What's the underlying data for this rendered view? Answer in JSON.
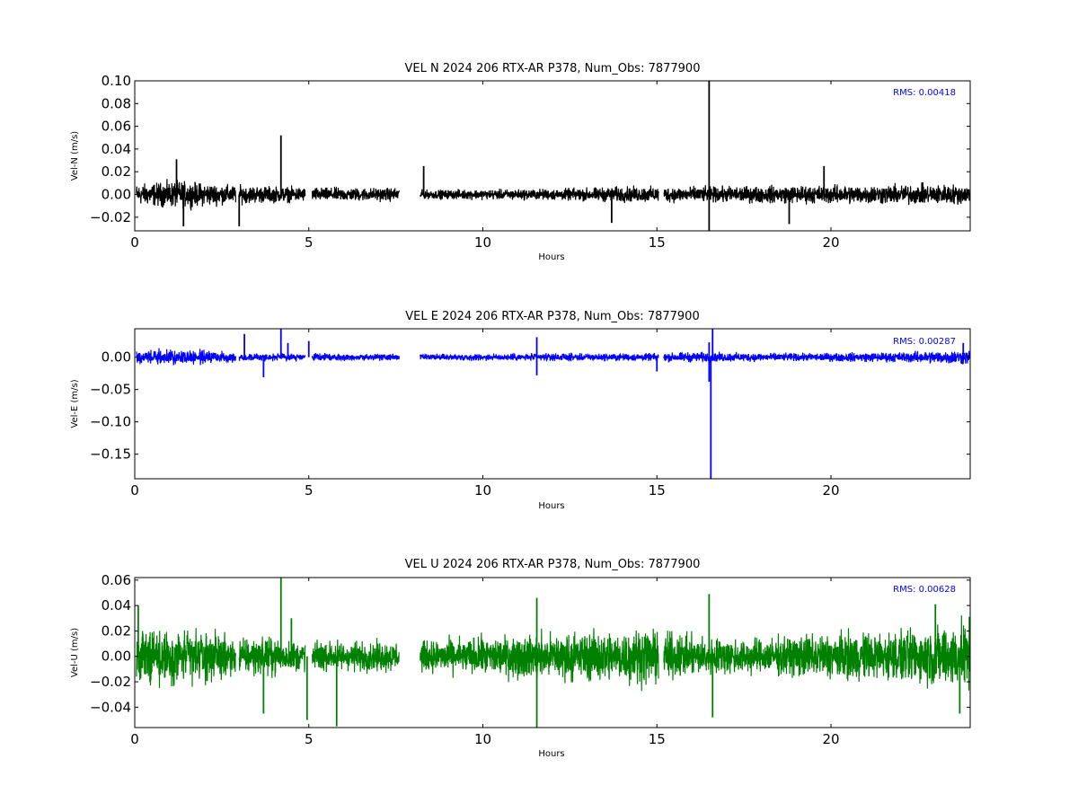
{
  "chart_data": [
    {
      "type": "line",
      "title": "VEL N 2024 206 RTX-AR  P378, Num_Obs: 7877900",
      "xlabel": "Hours",
      "ylabel": "Vel-N (m/s)",
      "color": "#000000",
      "rms_label": "RMS:  0.00418",
      "xlim": [
        0,
        24
      ],
      "ylim": [
        -0.032,
        0.1
      ],
      "xticks": [
        "0",
        "5",
        "10",
        "15",
        "20"
      ],
      "yticks": [
        "−0.02",
        "0.00",
        "0.02",
        "0.04",
        "0.06",
        "0.08",
        "0.10"
      ],
      "xtick_values": [
        0,
        5,
        10,
        15,
        20
      ],
      "ytick_values": [
        -0.02,
        0.0,
        0.02,
        0.04,
        0.06,
        0.08,
        0.1
      ],
      "data_segments": [
        [
          0.05,
          2.9
        ],
        [
          3.0,
          4.9
        ],
        [
          5.1,
          7.6
        ],
        [
          8.2,
          15.05
        ],
        [
          15.2,
          24.0
        ]
      ],
      "noise_envelope": [
        [
          0,
          0.009
        ],
        [
          1.2,
          0.012
        ],
        [
          2.5,
          0.009
        ],
        [
          3.2,
          0.008
        ],
        [
          5.5,
          0.006
        ],
        [
          7.6,
          0.006
        ],
        [
          8.2,
          0.004
        ],
        [
          12,
          0.005
        ],
        [
          14,
          0.007
        ],
        [
          16.5,
          0.007
        ],
        [
          19,
          0.008
        ],
        [
          22.5,
          0.009
        ],
        [
          24,
          0.009
        ]
      ],
      "spikes": [
        [
          1.2,
          0.031
        ],
        [
          1.4,
          -0.028
        ],
        [
          3.0,
          -0.028
        ],
        [
          4.2,
          0.052
        ],
        [
          8.3,
          0.025
        ],
        [
          13.7,
          -0.025
        ],
        [
          16.5,
          0.1
        ],
        [
          16.5,
          -0.032
        ],
        [
          18.8,
          -0.026
        ],
        [
          19.8,
          0.025
        ]
      ]
    },
    {
      "type": "line",
      "title": "VEL E 2024 206 RTX-AR  P378, Num_Obs: 7877900",
      "xlabel": "Hours",
      "ylabel": "Vel-E (m/s)",
      "color": "#0000ff",
      "rms_label": "RMS:  0.00287",
      "xlim": [
        0,
        24
      ],
      "ylim": [
        -0.188,
        0.044
      ],
      "xticks": [
        "0",
        "5",
        "10",
        "15",
        "20"
      ],
      "yticks": [
        "−0.15",
        "−0.10",
        "−0.05",
        "0.00"
      ],
      "xtick_values": [
        0,
        5,
        10,
        15,
        20
      ],
      "ytick_values": [
        -0.15,
        -0.1,
        -0.05,
        0.0
      ],
      "data_segments": [
        [
          0.05,
          2.9
        ],
        [
          3.0,
          4.9
        ],
        [
          5.1,
          7.6
        ],
        [
          8.2,
          15.05
        ],
        [
          15.2,
          24.0
        ]
      ],
      "noise_envelope": [
        [
          0,
          0.011
        ],
        [
          1.5,
          0.011
        ],
        [
          2.9,
          0.008
        ],
        [
          3.1,
          0.006
        ],
        [
          7.6,
          0.005
        ],
        [
          8.2,
          0.005
        ],
        [
          15,
          0.006
        ],
        [
          16,
          0.008
        ],
        [
          19,
          0.006
        ],
        [
          22,
          0.008
        ],
        [
          24,
          0.012
        ]
      ],
      "spikes": [
        [
          3.15,
          0.036
        ],
        [
          3.7,
          -0.031
        ],
        [
          4.2,
          0.044
        ],
        [
          4.4,
          0.022
        ],
        [
          5.0,
          0.025
        ],
        [
          11.55,
          0.031
        ],
        [
          11.55,
          -0.028
        ],
        [
          15.0,
          -0.022
        ],
        [
          16.5,
          0.023
        ],
        [
          16.5,
          -0.038
        ],
        [
          16.6,
          0.044
        ],
        [
          16.55,
          -0.188
        ],
        [
          23.8,
          0.022
        ]
      ]
    },
    {
      "type": "line",
      "title": "VEL U 2024 206 RTX-AR  P378, Num_Obs: 7877900",
      "xlabel": "Hours",
      "ylabel": "Vel-U (m/s)",
      "color": "#008000",
      "rms_label": "RMS:  0.00628",
      "xlim": [
        0,
        24
      ],
      "ylim": [
        -0.056,
        0.062
      ],
      "xticks": [
        "0",
        "5",
        "10",
        "15",
        "20"
      ],
      "yticks": [
        "−0.04",
        "−0.02",
        "0.00",
        "0.02",
        "0.04",
        "0.06"
      ],
      "xtick_values": [
        0,
        5,
        10,
        15,
        20
      ],
      "ytick_values": [
        -0.04,
        -0.02,
        0.0,
        0.02,
        0.04,
        0.06
      ],
      "data_segments": [
        [
          0.05,
          2.9
        ],
        [
          3.0,
          4.9
        ],
        [
          5.1,
          7.6
        ],
        [
          8.2,
          15.05
        ],
        [
          15.2,
          24.0
        ]
      ],
      "noise_envelope": [
        [
          0,
          0.02
        ],
        [
          1.5,
          0.022
        ],
        [
          2.9,
          0.015
        ],
        [
          3.5,
          0.015
        ],
        [
          5.0,
          0.012
        ],
        [
          7.6,
          0.012
        ],
        [
          8.2,
          0.012
        ],
        [
          11.5,
          0.018
        ],
        [
          14.8,
          0.022
        ],
        [
          16,
          0.016
        ],
        [
          18,
          0.014
        ],
        [
          19.5,
          0.018
        ],
        [
          22,
          0.02
        ],
        [
          24,
          0.028
        ]
      ],
      "spikes": [
        [
          0.1,
          0.04
        ],
        [
          3.7,
          -0.045
        ],
        [
          4.2,
          0.062
        ],
        [
          4.5,
          0.03
        ],
        [
          4.95,
          -0.05
        ],
        [
          5.8,
          -0.055
        ],
        [
          11.55,
          0.046
        ],
        [
          11.55,
          -0.056
        ],
        [
          16.5,
          0.049
        ],
        [
          16.6,
          -0.048
        ],
        [
          23.0,
          0.041
        ],
        [
          23.7,
          -0.045
        ]
      ]
    }
  ]
}
